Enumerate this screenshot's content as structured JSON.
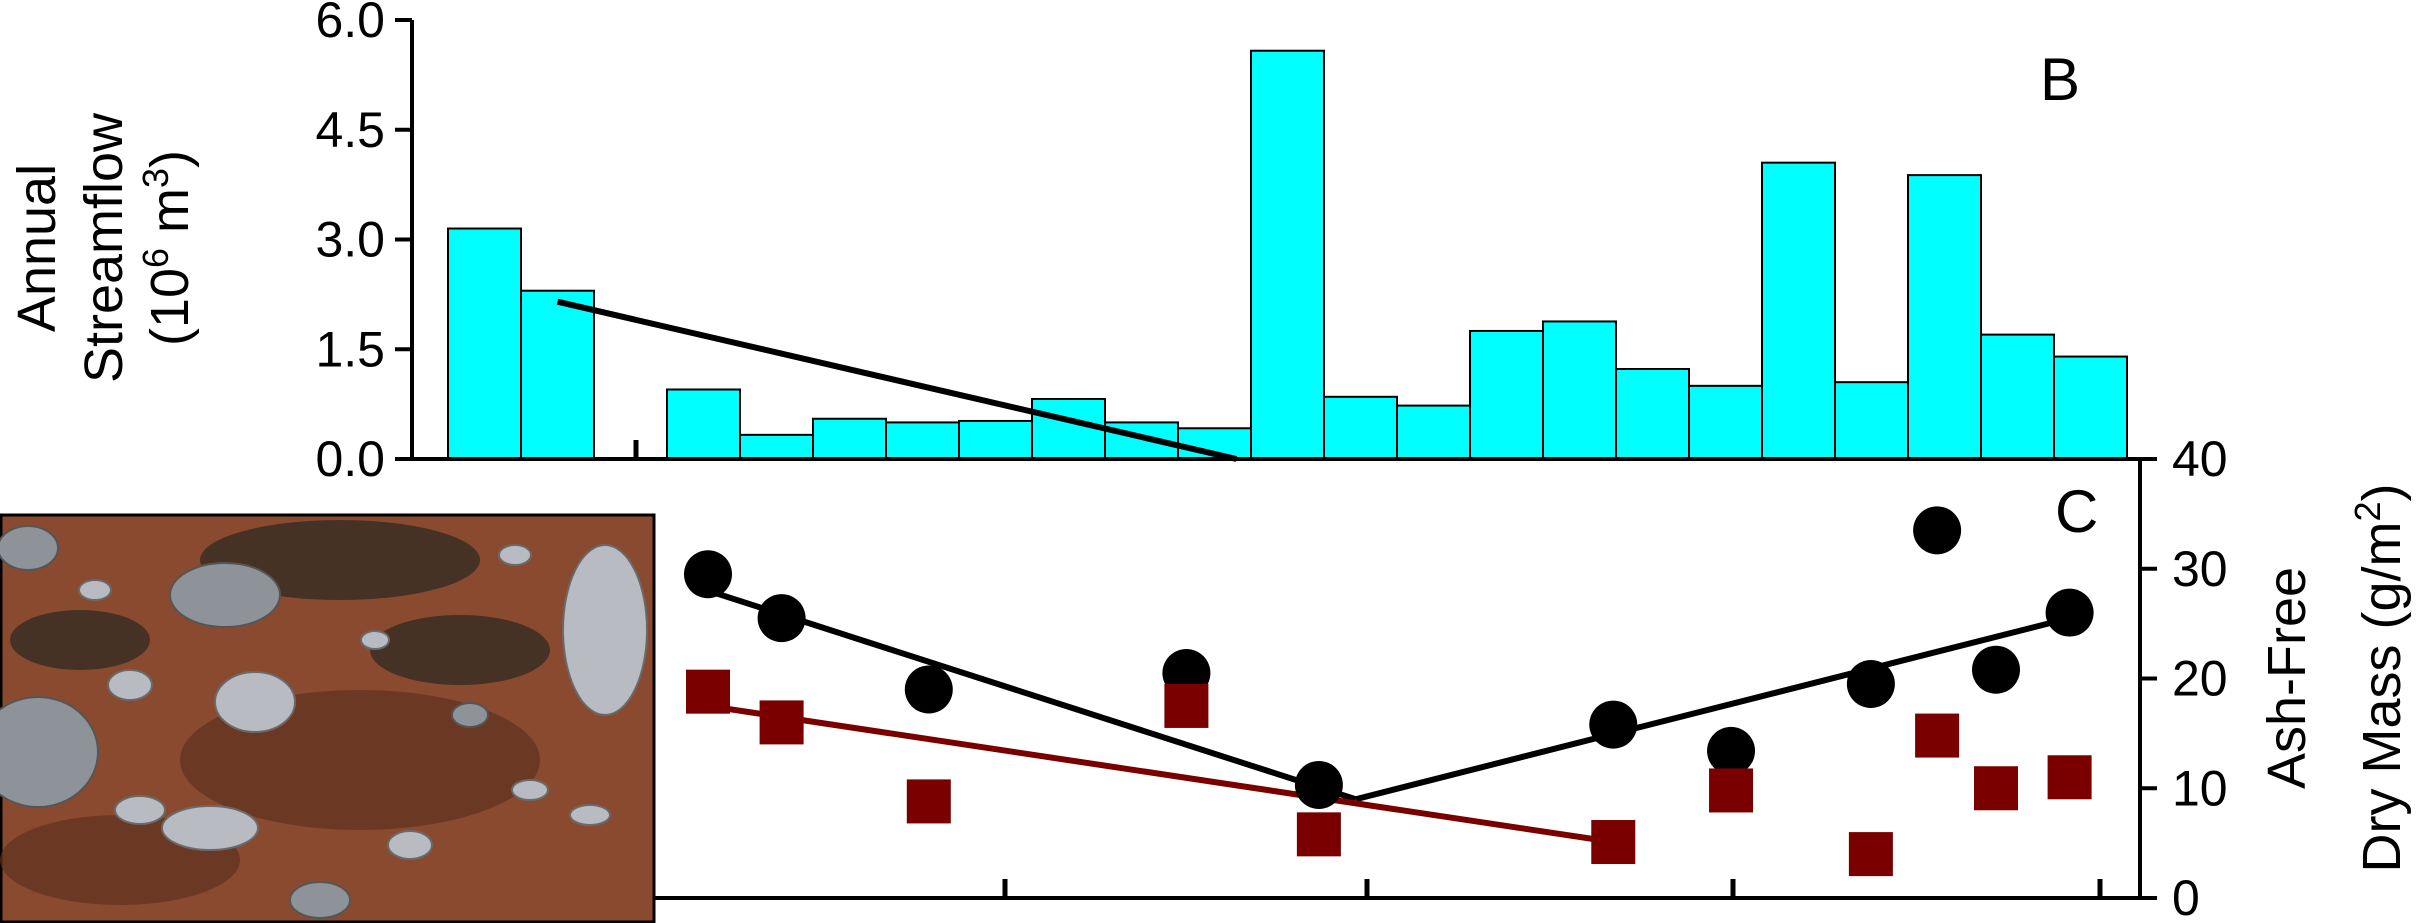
{
  "figure": {
    "panel_b_letter": "B",
    "panel_c_letter": "C"
  },
  "photo": {
    "colors": {
      "mud": "#8a4a30",
      "mud_dark": "#5e3020",
      "rock": "#8e939a",
      "rock_light": "#b8bcc2",
      "moss": "#3a2e22"
    }
  },
  "chart_data": [
    {
      "type": "bar",
      "panel": "B",
      "ylabel_lines": [
        "Annual",
        "Streamflow",
        "(10",
        "6",
        " m",
        "3",
        ")"
      ],
      "yticks": [
        "0.0",
        "1.5",
        "3.0",
        "4.5",
        "6.0"
      ],
      "ylim": [
        0,
        6
      ],
      "bar_color": "#00ffff",
      "values": [
        3.15,
        2.3,
        null,
        0.95,
        0.33,
        0.55,
        0.5,
        0.52,
        0.82,
        0.5,
        0.42,
        5.58,
        0.85,
        0.73,
        1.75,
        1.88,
        1.23,
        1.0,
        4.05,
        1.05,
        3.88,
        1.7,
        1.4
      ],
      "trendline": {
        "x": [
          1,
          10.3
        ],
        "y": [
          2.15,
          0.0
        ],
        "color": "#000000"
      }
    },
    {
      "type": "scatter",
      "panel": "C",
      "ylabel_lines": [
        "Ash-Free",
        "Dry Mass (g/m",
        "2",
        ")"
      ],
      "yticks": [
        "0",
        "10",
        "20",
        "30",
        "40"
      ],
      "ylim": [
        0,
        40
      ],
      "series": [
        {
          "marker": "circle",
          "color": "#000000",
          "points": [
            [
              0,
              29.5
            ],
            [
              1,
              25.5
            ],
            [
              3,
              19
            ],
            [
              6.5,
              20.5
            ],
            [
              8.3,
              10.3
            ],
            [
              12.3,
              15.8
            ],
            [
              13.9,
              13.4
            ],
            [
              15.8,
              19.5
            ],
            [
              16.7,
              33.5
            ],
            [
              17.5,
              20.8
            ],
            [
              18.5,
              26
            ]
          ],
          "trendlines": [
            {
              "x": [
                0,
                8.8
              ],
              "y": [
                28,
                9
              ]
            },
            {
              "x": [
                8.8,
                18.5
              ],
              "y": [
                9,
                25.5
              ]
            }
          ]
        },
        {
          "marker": "square",
          "color": "#7a0000",
          "points": [
            [
              0,
              18.8
            ],
            [
              1,
              16
            ],
            [
              3,
              8.8
            ],
            [
              6.5,
              17.5
            ],
            [
              8.3,
              5.8
            ],
            [
              12.3,
              5.1
            ],
            [
              13.9,
              9.8
            ],
            [
              15.8,
              4
            ],
            [
              16.7,
              14.8
            ],
            [
              17.5,
              10
            ],
            [
              18.5,
              11
            ]
          ],
          "trendlines": [
            {
              "x": [
                0,
                12.3
              ],
              "y": [
                17.5,
                5.1
              ]
            }
          ]
        }
      ]
    }
  ]
}
